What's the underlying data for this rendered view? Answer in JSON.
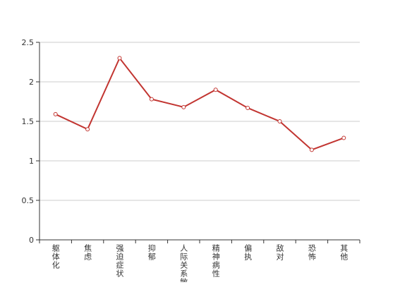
{
  "chart_data": {
    "type": "line",
    "categories": [
      "躯体化",
      "焦虑",
      "强迫症状",
      "抑郁",
      "人际关系敏感",
      "精神病性",
      "偏执",
      "敌对",
      "恐怖",
      "其他"
    ],
    "series": [
      {
        "color": "#c23531",
        "values": [
          1.59,
          1.4,
          2.3,
          1.78,
          1.68,
          1.9,
          1.67,
          1.5,
          1.14,
          1.29
        ]
      }
    ],
    "ylim": [
      0,
      2.5
    ],
    "yticks": [
      0,
      0.5,
      1,
      1.5,
      2,
      2.5
    ],
    "grid": true
  }
}
